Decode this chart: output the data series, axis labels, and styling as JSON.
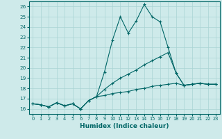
{
  "xlabel": "Humidex (Indice chaleur)",
  "background_color": "#ceeaea",
  "grid_color": "#aad4d4",
  "line_color": "#006666",
  "xlim": [
    -0.5,
    23.5
  ],
  "ylim": [
    15.5,
    26.5
  ],
  "yticks": [
    16,
    17,
    18,
    19,
    20,
    21,
    22,
    23,
    24,
    25,
    26
  ],
  "xticks": [
    0,
    1,
    2,
    3,
    4,
    5,
    6,
    7,
    8,
    9,
    10,
    11,
    12,
    13,
    14,
    15,
    16,
    17,
    18,
    19,
    20,
    21,
    22,
    23
  ],
  "hours": [
    0,
    1,
    2,
    3,
    4,
    5,
    6,
    7,
    8,
    9,
    10,
    11,
    12,
    13,
    14,
    15,
    16,
    17,
    18,
    19,
    20,
    21,
    22,
    23
  ],
  "line_max": [
    16.5,
    16.4,
    16.2,
    16.6,
    16.3,
    16.5,
    16.0,
    16.8,
    17.2,
    19.6,
    22.7,
    25.0,
    23.4,
    24.6,
    26.2,
    25.0,
    24.5,
    22.0,
    19.5,
    18.3,
    18.4,
    18.5,
    18.4,
    18.4
  ],
  "line_mean": [
    16.5,
    16.4,
    16.2,
    16.6,
    16.3,
    16.5,
    16.0,
    16.8,
    17.2,
    17.9,
    18.5,
    19.0,
    19.4,
    19.8,
    20.3,
    20.7,
    21.1,
    21.5,
    19.5,
    18.3,
    18.4,
    18.5,
    18.4,
    18.4
  ],
  "line_min": [
    16.5,
    16.4,
    16.2,
    16.6,
    16.3,
    16.5,
    16.0,
    16.8,
    17.2,
    17.3,
    17.5,
    17.6,
    17.7,
    17.9,
    18.0,
    18.2,
    18.3,
    18.4,
    18.5,
    18.3,
    18.4,
    18.5,
    18.4,
    18.4
  ]
}
